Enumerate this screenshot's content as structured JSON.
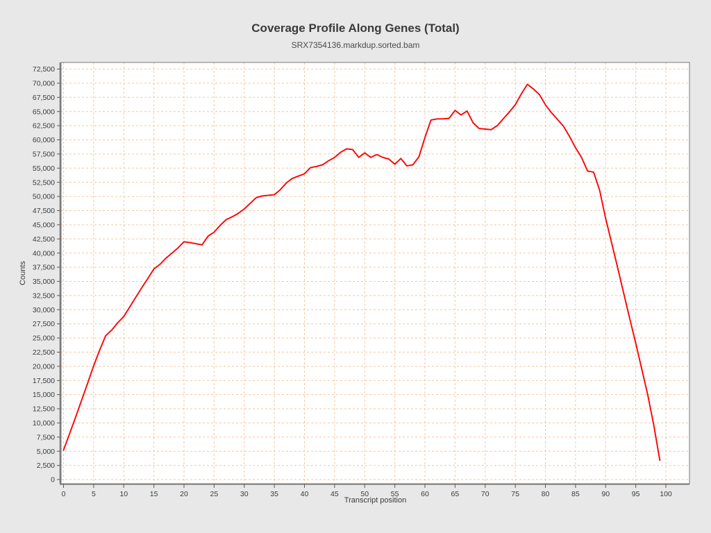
{
  "page": {
    "background": "#e8e8e8",
    "plot_background": "#ffffff"
  },
  "header": {
    "title": "Coverage Profile Along Genes (Total)",
    "subtitle": "SRX7354136.markdup.sorted.bam"
  },
  "chart_data": {
    "type": "line",
    "title": "Coverage Profile Along Genes (Total)",
    "subtitle": "SRX7354136.markdup.sorted.bam",
    "xlabel": "Transcript position",
    "ylabel": "Counts",
    "xlim": [
      0,
      100
    ],
    "ylim": [
      0,
      72500
    ],
    "x_tick_step": 5,
    "y_tick_step": 2500,
    "grid": {
      "show": true,
      "color": "#f7c69b",
      "style": "dashed"
    },
    "legend_position": "none",
    "series": [
      {
        "name": "SRX7354136.markdup.sorted.bam",
        "color": "#ff0000",
        "x": [
          0,
          1,
          2,
          3,
          4,
          5,
          6,
          7,
          8,
          9,
          10,
          11,
          12,
          13,
          14,
          15,
          16,
          17,
          18,
          19,
          20,
          21,
          22,
          23,
          24,
          25,
          26,
          27,
          28,
          29,
          30,
          31,
          32,
          33,
          34,
          35,
          36,
          37,
          38,
          39,
          40,
          41,
          42,
          43,
          44,
          45,
          46,
          47,
          48,
          49,
          50,
          51,
          52,
          53,
          54,
          55,
          56,
          57,
          58,
          59,
          60,
          61,
          62,
          63,
          64,
          65,
          66,
          67,
          68,
          69,
          70,
          71,
          72,
          73,
          74,
          75,
          76,
          77,
          78,
          79,
          80,
          81,
          82,
          83,
          84,
          85,
          86,
          87,
          88,
          89,
          90,
          91,
          92,
          93,
          94,
          95,
          96,
          97,
          98,
          99
        ],
        "y": [
          5200,
          8100,
          11000,
          14000,
          17000,
          20100,
          22900,
          25400,
          26400,
          27700,
          28800,
          30500,
          32200,
          33900,
          35500,
          37200,
          38000,
          39100,
          40000,
          40900,
          42000,
          41850,
          41650,
          41450,
          43000,
          43700,
          44900,
          45900,
          46400,
          47000,
          47800,
          48800,
          49800,
          50100,
          50200,
          50300,
          51200,
          52400,
          53200,
          53600,
          54000,
          55100,
          55300,
          55600,
          56300,
          56900,
          57800,
          58400,
          58300,
          56900,
          57700,
          56900,
          57400,
          56900,
          56600,
          55700,
          56700,
          55400,
          55600,
          57000,
          60400,
          63500,
          63700,
          63700,
          63800,
          65200,
          64400,
          65100,
          63000,
          62000,
          61900,
          61800,
          62500,
          63700,
          64900,
          66200,
          68100,
          69800,
          69000,
          68000,
          66200,
          64800,
          63600,
          62400,
          60600,
          58600,
          56900,
          54500,
          54300,
          51100,
          46100,
          41800,
          37400,
          32900,
          28400,
          24100,
          19500,
          14900,
          9600,
          3400
        ]
      }
    ]
  }
}
